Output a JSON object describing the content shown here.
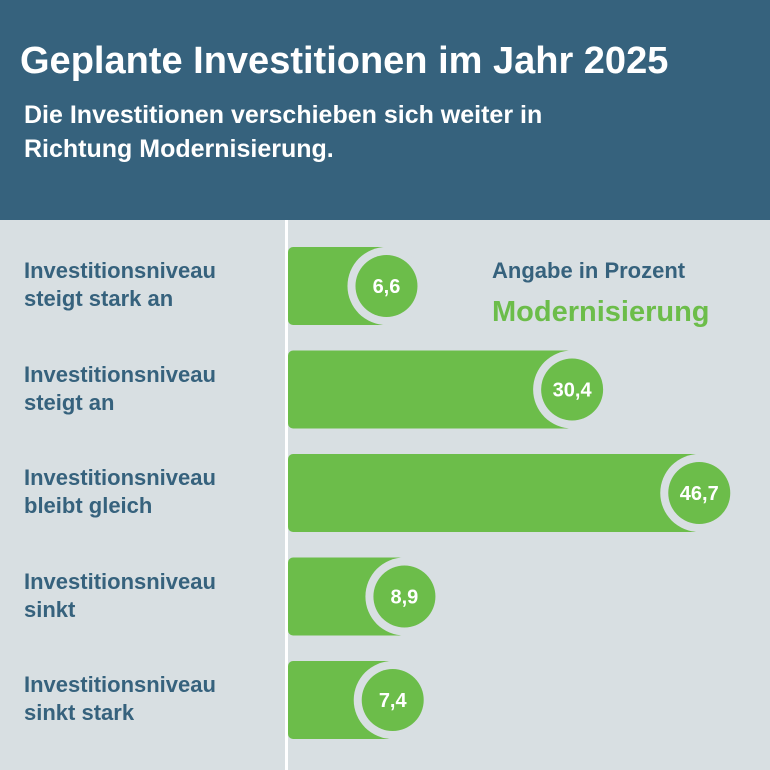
{
  "header": {
    "title": "Geplante Investitionen im Jahr 2025",
    "subtitle": "Die Investitionen verschieben sich weiter in Richtung Modernisierung."
  },
  "colors": {
    "header": "#36627d",
    "background": "#d8dfe2",
    "bar": "#6cbd4a",
    "text": "#36627d"
  },
  "chart_data": {
    "type": "bar",
    "orientation": "horizontal",
    "title": "Geplante Investitionen im Jahr 2025",
    "unit_note": "Angabe in Prozent",
    "series_name": "Modernisierung",
    "categories": [
      "Investitionsniveau steigt stark an",
      "Investitionsniveau steigt an",
      "Investitionsniveau bleibt gleich",
      "Investitionsniveau sinkt",
      "Investitionsniveau sinkt stark"
    ],
    "category_lines": [
      [
        "Investitionsniveau",
        "steigt stark an"
      ],
      [
        "Investitionsniveau",
        "steigt an"
      ],
      [
        "Investitionsniveau",
        "bleibt gleich"
      ],
      [
        "Investitionsniveau",
        "sinkt"
      ],
      [
        "Investitionsniveau",
        "sinkt stark"
      ]
    ],
    "values": [
      6.6,
      30.4,
      46.7,
      8.9,
      7.4
    ],
    "value_labels": [
      "6,6",
      "30,4",
      "46,7",
      "8,9",
      "7,4"
    ]
  }
}
